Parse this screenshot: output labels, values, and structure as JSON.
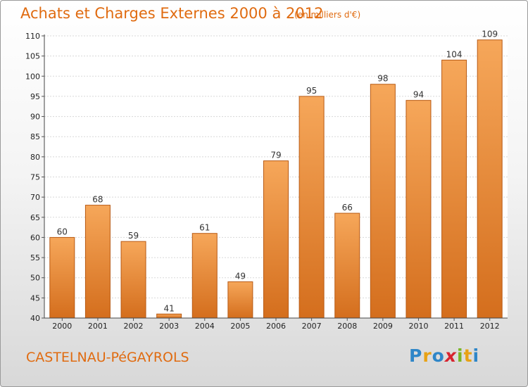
{
  "header": {
    "title": "Achats et Charges Externes 2000 à 2012",
    "subtitle": "(en milliers d'€)"
  },
  "footer": {
    "commune": "CASTELNAU-PéGAYROLS",
    "logo_text": "Proxiti"
  },
  "colors": {
    "accent": "#e06b10",
    "bar_top": "#f6a75a",
    "bar_bottom": "#d46e1d"
  },
  "chart_data": {
    "type": "bar",
    "title": "Achats et Charges Externes 2000 à 2012",
    "subtitle": "(en milliers d'€)",
    "xlabel": "",
    "ylabel": "",
    "categories": [
      "2000",
      "2001",
      "2002",
      "2003",
      "2004",
      "2005",
      "2006",
      "2007",
      "2008",
      "2009",
      "2010",
      "2011",
      "2012"
    ],
    "values": [
      60,
      68,
      59,
      41,
      61,
      49,
      79,
      95,
      66,
      98,
      94,
      104,
      109
    ],
    "ylim": [
      40,
      110
    ],
    "yticks": [
      40,
      45,
      50,
      55,
      60,
      65,
      70,
      75,
      80,
      85,
      90,
      95,
      100,
      105,
      110
    ],
    "grid": true,
    "data_labels": true
  }
}
